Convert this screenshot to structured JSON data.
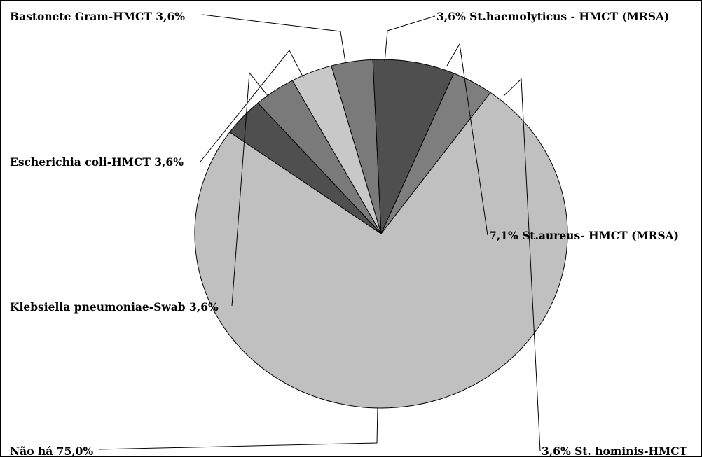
{
  "chart_data": {
    "type": "pie",
    "slices": [
      {
        "label": "3,6% St.haemolyticus - HMCT (MRSA)",
        "value": 3.6,
        "color": "#7a7a7a"
      },
      {
        "label": "7,1% St.aureus- HMCT (MRSA)",
        "value": 7.1,
        "color": "#4f4f4f"
      },
      {
        "label": "3,6% St. hominis-HMCT",
        "value": 3.6,
        "color": "#7e7e7e"
      },
      {
        "label": "Não há 75,0%",
        "value": 75.0,
        "color": "#c0c0c0"
      },
      {
        "label": "Klebsiella pneumoniae-Swab 3,6%",
        "value": 3.6,
        "color": "#4f4f4f"
      },
      {
        "label": "Escherichia coli-HMCT 3,6%",
        "value": 3.6,
        "color": "#7a7a7a"
      },
      {
        "label": "Bastonete Gram-HMCT 3,6%",
        "value": 3.6,
        "color": "#c8c8c8"
      }
    ]
  }
}
